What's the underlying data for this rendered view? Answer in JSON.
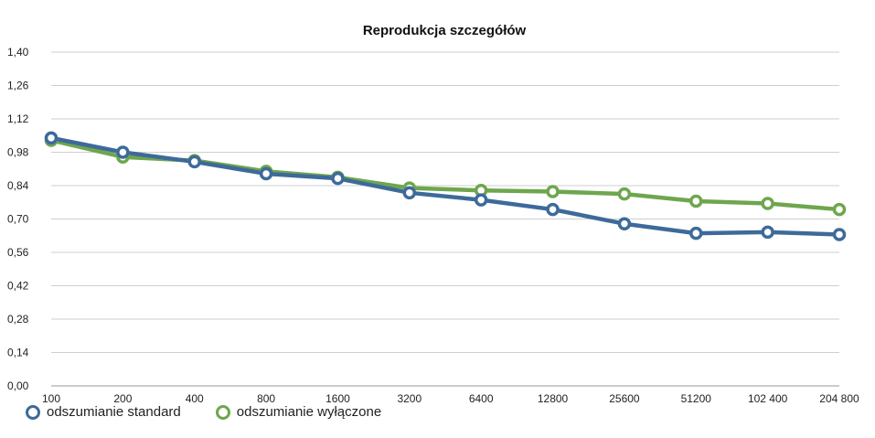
{
  "chart_data": {
    "type": "line",
    "title": "Reprodukcja szczegółów",
    "xlabel": "",
    "ylabel": "",
    "categories": [
      "100",
      "200",
      "400",
      "800",
      "1600",
      "3200",
      "6400",
      "12800",
      "25600",
      "51200",
      "102 400",
      "204 800"
    ],
    "y_ticks": [
      "0,00",
      "0,14",
      "0,28",
      "0,42",
      "0,56",
      "0,70",
      "0,84",
      "0,98",
      "1,12",
      "1,26",
      "1,40"
    ],
    "ylim": [
      0,
      1.4
    ],
    "grid": true,
    "legend_position": "bottom-left",
    "series": [
      {
        "name": "odszumianie standard",
        "color": "#3d6a9a",
        "values": [
          1.04,
          0.98,
          0.94,
          0.89,
          0.87,
          0.81,
          0.78,
          0.74,
          0.68,
          0.64,
          0.645,
          0.635
        ]
      },
      {
        "name": "odszumianie wyłączone",
        "color": "#6ea64e",
        "values": [
          1.03,
          0.96,
          0.945,
          0.9,
          0.875,
          0.83,
          0.82,
          0.815,
          0.805,
          0.775,
          0.765,
          0.74
        ]
      }
    ]
  }
}
